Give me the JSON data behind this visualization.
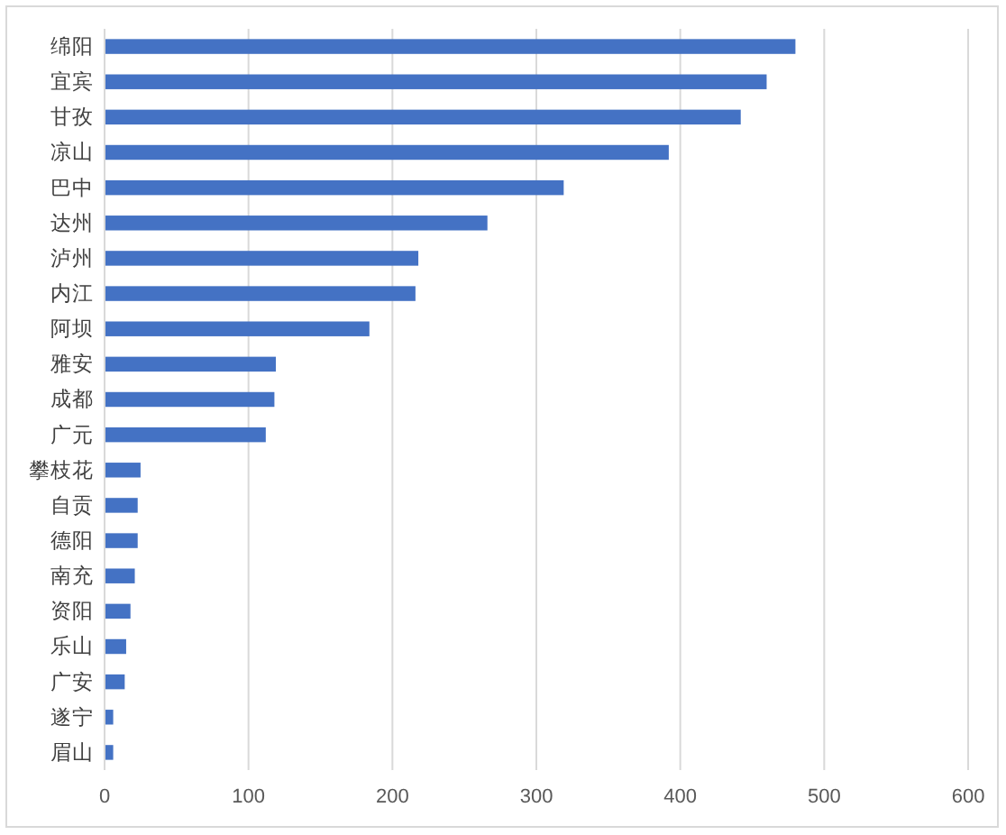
{
  "chart_data": {
    "type": "bar",
    "orientation": "horizontal",
    "categories": [
      "绵阳",
      "宜宾",
      "甘孜",
      "凉山",
      "巴中",
      "达州",
      "泸州",
      "内江",
      "阿坝",
      "雅安",
      "成都",
      "广元",
      "攀枝花",
      "自贡",
      "德阳",
      "南充",
      "资阳",
      "乐山",
      "广安",
      "遂宁",
      "眉山"
    ],
    "values": [
      480,
      460,
      442,
      392,
      319,
      266,
      218,
      216,
      184,
      119,
      118,
      112,
      25,
      23,
      23,
      21,
      18,
      15,
      14,
      6,
      6
    ],
    "color": "#4472c4",
    "xlim": [
      0,
      600
    ],
    "xticks": [
      0,
      100,
      200,
      300,
      400,
      500,
      600
    ],
    "grid": "x"
  }
}
